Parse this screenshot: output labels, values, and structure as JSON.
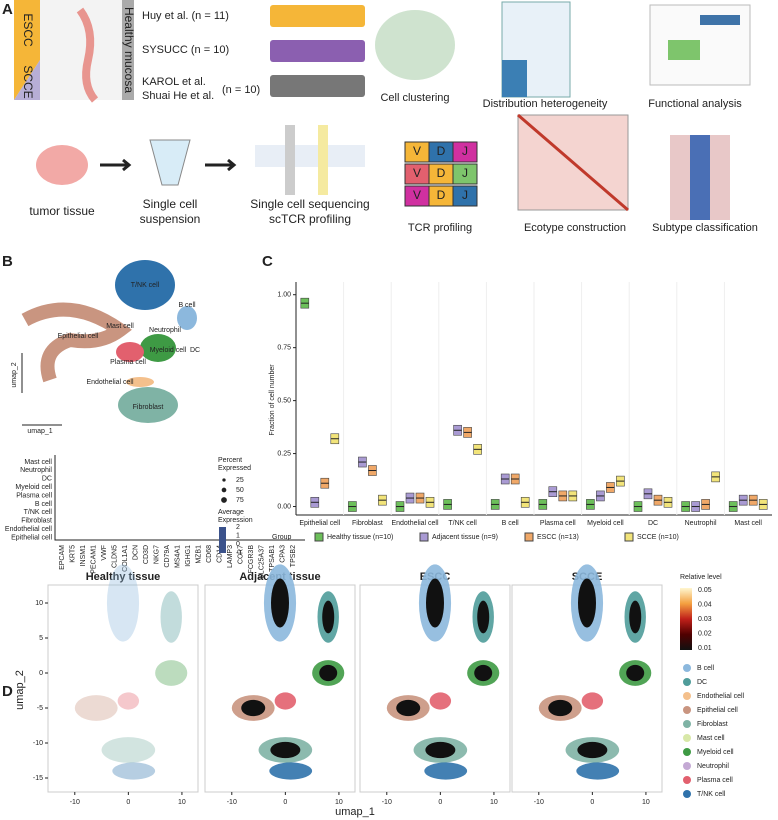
{
  "panel_a": {
    "letter": "A",
    "escc": "ESCC",
    "scce": "SCCE",
    "healthy": "Healthy mucosa",
    "cohorts": [
      "Huy et al. (n = 11)",
      "SYSUCC (n = 10)",
      "KAROL et al.",
      "Shuai He et al.",
      "(n = 10)"
    ],
    "steps": [
      "Cell clustering",
      "Distribution heterogeneity",
      "Functional analysis"
    ],
    "workflow": [
      "tumor tissue",
      "Single cell",
      "suspension",
      "Single cell sequencing",
      "scTCR profiling"
    ],
    "tcr": [
      "V",
      "D",
      "J"
    ],
    "steps2": [
      "TCR profiling",
      "Ecotype construction",
      "Subtype classification"
    ]
  },
  "panel_b": {
    "letter": "B",
    "umap_labels": [
      "T/NK cell",
      "B cell",
      "Neutrophil",
      "Mast cell",
      "Epithelial cell",
      "Myeloid cell",
      "DC",
      "Plasma cell",
      "Endothelial cell",
      "Fibroblast"
    ],
    "x_axis": "umap_1",
    "y_axis": "umap_2",
    "rows": [
      "Mast cell",
      "Neutrophil",
      "DC",
      "Myeloid cell",
      "Plasma cell",
      "B cell",
      "T/NK cell",
      "Fibroblast",
      "Endothelial cell",
      "Epithelial cell"
    ],
    "genes": [
      "EPCAM",
      "KRT5",
      "INSM1",
      "PECAM1",
      "VWF",
      "CLDN5",
      "COL1A1",
      "DCN",
      "CD3D",
      "NKG7",
      "CD79A",
      "MS4A1",
      "IGHG1",
      "MZB1",
      "CD68",
      "CD14",
      "LAMP3",
      "CCR7",
      "FCGR3B",
      "SLC25A37",
      "TPSAB1",
      "CPA3",
      "TPSB2"
    ],
    "size_title": [
      "Percent",
      "Expressed"
    ],
    "size_ticks": [
      25,
      50,
      75
    ],
    "color_title": [
      "Average",
      "Expression"
    ],
    "color_ticks": [
      2,
      1,
      0,
      -1
    ]
  },
  "panel_c": {
    "letter": "C",
    "chart_data": {
      "type": "box",
      "y_label": "Fraction of cell number",
      "categories": [
        "Epithelial cell",
        "Fibroblast",
        "Endothelial cell",
        "T/NK cell",
        "B cell",
        "Plasma cell",
        "Myeloid cell",
        "DC",
        "Neutrophil",
        "Mast cell"
      ],
      "legend_title": "Group",
      "series": [
        {
          "name": "Healthy tissue (n=10)",
          "color": "#6cbf5a",
          "values": [
            0.96,
            0,
            0,
            0.01,
            0.01,
            0.01,
            0.01,
            0,
            0,
            0
          ]
        },
        {
          "name": "Adjacent tissue (n=9)",
          "color": "#a99ad3",
          "values": [
            0.02,
            0.21,
            0.04,
            0.36,
            0.13,
            0.07,
            0.05,
            0.06,
            0,
            0.03
          ]
        },
        {
          "name": "ESCC (n=13)",
          "color": "#f0a868",
          "values": [
            0.11,
            0.17,
            0.04,
            0.35,
            0.13,
            0.05,
            0.09,
            0.03,
            0.01,
            0.03
          ]
        },
        {
          "name": "SCCE (n=10)",
          "color": "#f2e47a",
          "values": [
            0.32,
            0.03,
            0.02,
            0.27,
            0.02,
            0.05,
            0.12,
            0.02,
            0.14,
            0.01
          ]
        }
      ],
      "ylim": [
        -0.04,
        1.06
      ],
      "yticks": [
        {
          "value": 0,
          "label": "0.00"
        },
        {
          "value": 0.25,
          "label": "0.25"
        },
        {
          "value": 0.5,
          "label": "0.50"
        },
        {
          "value": 0.75,
          "label": "0.75"
        },
        {
          "value": 1,
          "label": "1.00"
        }
      ]
    }
  },
  "panel_d": {
    "letter": "D",
    "titles": [
      "Healthy tissue",
      "Adjacent tissue",
      "ESCC",
      "SCCE"
    ],
    "x_axis": "umap_1",
    "y_axis": "umap_2",
    "xlim": [
      -15,
      13
    ],
    "ylim": [
      -17,
      14
    ],
    "xticks": [
      -10,
      0,
      10
    ],
    "yticks": [
      10,
      5,
      0,
      -5,
      -10,
      -15
    ],
    "colorbar_title": "Relative level",
    "colorbar_ticks": [
      0.05,
      0.04,
      0.03,
      0.02,
      0.01
    ],
    "legend": [
      {
        "name": "B cell",
        "color": "#8cb8dd"
      },
      {
        "name": "DC",
        "color": "#4f9c9a"
      },
      {
        "name": "Endothelial cell",
        "color": "#f4c08c"
      },
      {
        "name": "Epithelial cell",
        "color": "#c99580"
      },
      {
        "name": "Fibroblast",
        "color": "#7fb3a5"
      },
      {
        "name": "Mast cell",
        "color": "#d8e8a8"
      },
      {
        "name": "Myeloid cell",
        "color": "#3e9a44"
      },
      {
        "name": "Neutrophil",
        "color": "#c4a9d4"
      },
      {
        "name": "Plasma cell",
        "color": "#e2606e"
      },
      {
        "name": "T/NK cell",
        "color": "#2f72ab"
      }
    ]
  }
}
